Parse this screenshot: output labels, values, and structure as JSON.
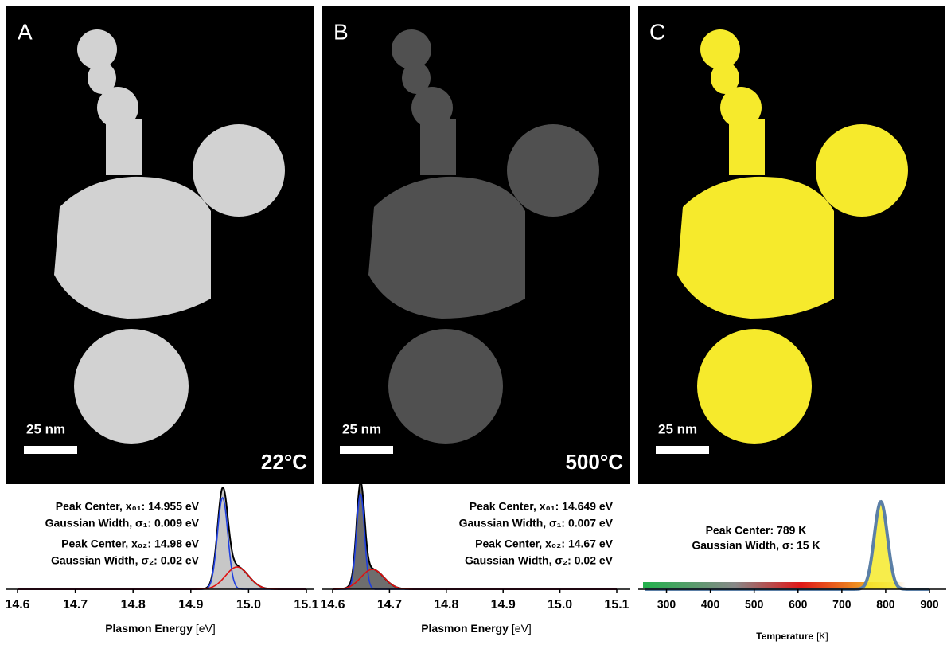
{
  "panels": [
    {
      "label": "A",
      "temperature": "22°C",
      "scale_bar": "25 nm",
      "annotations": [
        "Peak Center, x₀₁: 14.955 eV",
        "Gaussian Width, σ₁: 0.009 eV",
        "Peak Center, x₀₂: 14.98 eV",
        "Gaussian Width, σ₂: 0.02 eV"
      ],
      "peaks": [
        {
          "center": 14.955,
          "width": 0.009,
          "color": "#1f3fe0"
        },
        {
          "center": 14.98,
          "width": 0.02,
          "color": "#e01010"
        }
      ],
      "x_axis": {
        "title": "Plasmon Energy",
        "unit": "[eV]",
        "xlim": [
          14.6,
          15.1
        ],
        "xticks": [
          14.6,
          14.7,
          14.8,
          14.9,
          {
            "value": 15,
            "label": "15.0"
          },
          15.1
        ]
      }
    },
    {
      "label": "B",
      "temperature": "500°C",
      "scale_bar": "25 nm",
      "annotations": [
        "Peak Center, x₀₁: 14.649 eV",
        "Gaussian Width, σ₁: 0.007 eV",
        "Peak Center, x₀₂: 14.67 eV",
        "Gaussian Width, σ₂: 0.02 eV"
      ],
      "peaks": [
        {
          "center": 14.649,
          "width": 0.007,
          "color": "#1f3fe0"
        },
        {
          "center": 14.67,
          "width": 0.02,
          "color": "#e01010"
        }
      ],
      "x_axis": {
        "title": "Plasmon Energy",
        "unit": "[eV]",
        "xlim": [
          14.6,
          15.1
        ],
        "xticks": [
          14.6,
          14.7,
          14.8,
          14.9,
          {
            "value": 15,
            "label": "15.0"
          },
          15.1
        ]
      }
    },
    {
      "label": "C",
      "scale_bar": "25 nm",
      "annotations": [
        "Peak Center: 789 K",
        "Gaussian Width, σ: 15 K"
      ],
      "peaks": [
        {
          "center": 789,
          "width": 15,
          "color": "#5b7fa6"
        }
      ],
      "x_axis": {
        "title": "Temperature",
        "unit": "[K]",
        "xlim": [
          250,
          900
        ],
        "xticks": [
          300,
          400,
          500,
          600,
          700,
          800,
          900
        ]
      }
    }
  ]
}
